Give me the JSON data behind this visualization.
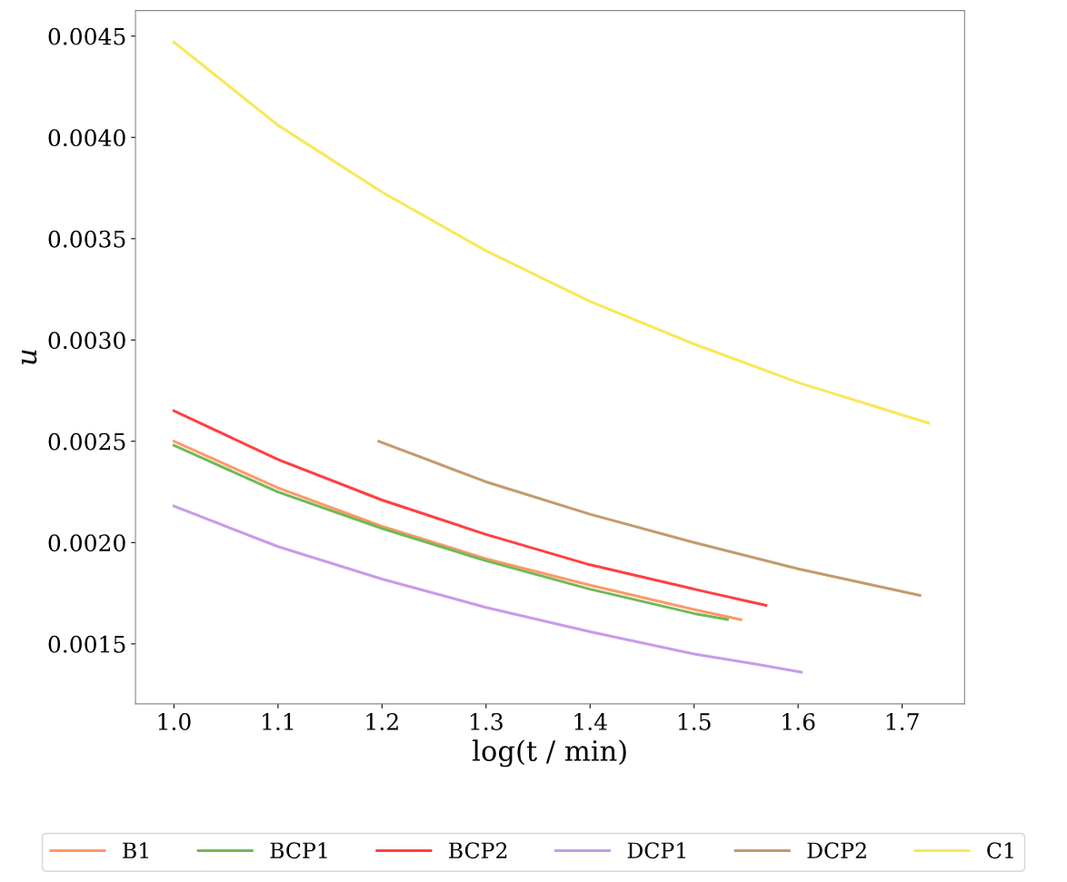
{
  "chart_data": {
    "type": "line",
    "xlabel": "log(t / min)",
    "ylabel": "u",
    "xlim": [
      0.963,
      1.76
    ],
    "xticks": [
      {
        "value": 1,
        "label": "1.0"
      },
      1.1,
      1.2,
      1.3,
      1.4,
      1.5,
      1.6,
      1.7
    ],
    "ylim": [
      0.001204,
      0.004626
    ],
    "yticks": [
      0.0015,
      {
        "value": 0.002,
        "label": "0.0020"
      },
      0.0025,
      {
        "value": 0.003,
        "label": "0.0030"
      },
      0.0035,
      {
        "value": 0.004,
        "label": "0.0040"
      },
      0.0045
    ],
    "grid": false,
    "legend": "bottom",
    "line_style": "solid",
    "marker": "none",
    "series": [
      {
        "name": "B1",
        "color": "#ff9966",
        "x": [
          1.0,
          1.1,
          1.2,
          1.3,
          1.4,
          1.5,
          1.545
        ],
        "values": [
          0.0025,
          0.00227,
          0.00208,
          0.00192,
          0.00179,
          0.00167,
          0.00162
        ]
      },
      {
        "name": "BCP1",
        "color": "#70b85a",
        "x": [
          1.0,
          1.1,
          1.2,
          1.3,
          1.4,
          1.5,
          1.532
        ],
        "values": [
          0.00248,
          0.00225,
          0.00207,
          0.00191,
          0.00177,
          0.00165,
          0.00162
        ]
      },
      {
        "name": "BCP2",
        "color": "#ff4040",
        "x": [
          1.0,
          1.1,
          1.2,
          1.3,
          1.4,
          1.5,
          1.569
        ],
        "values": [
          0.00265,
          0.00241,
          0.00221,
          0.00204,
          0.00189,
          0.00177,
          0.00169
        ]
      },
      {
        "name": "DCP1",
        "color": "#c99be8",
        "x": [
          1.0,
          1.1,
          1.2,
          1.3,
          1.4,
          1.5,
          1.56,
          1.603
        ],
        "values": [
          0.00218,
          0.00198,
          0.00182,
          0.00168,
          0.00156,
          0.00145,
          0.0014,
          0.00136
        ]
      },
      {
        "name": "DCP2",
        "color": "#c49a6c",
        "x": [
          1.197,
          1.3,
          1.4,
          1.5,
          1.6,
          1.717
        ],
        "values": [
          0.0025,
          0.0023,
          0.00214,
          0.002,
          0.00187,
          0.00174
        ]
      },
      {
        "name": "C1",
        "color": "#f8e858",
        "x": [
          1.0,
          1.1,
          1.2,
          1.3,
          1.4,
          1.5,
          1.6,
          1.7,
          1.7255
        ],
        "values": [
          0.00447,
          0.00406,
          0.00373,
          0.00344,
          0.00319,
          0.00298,
          0.00279,
          0.00263,
          0.00259
        ]
      }
    ]
  }
}
